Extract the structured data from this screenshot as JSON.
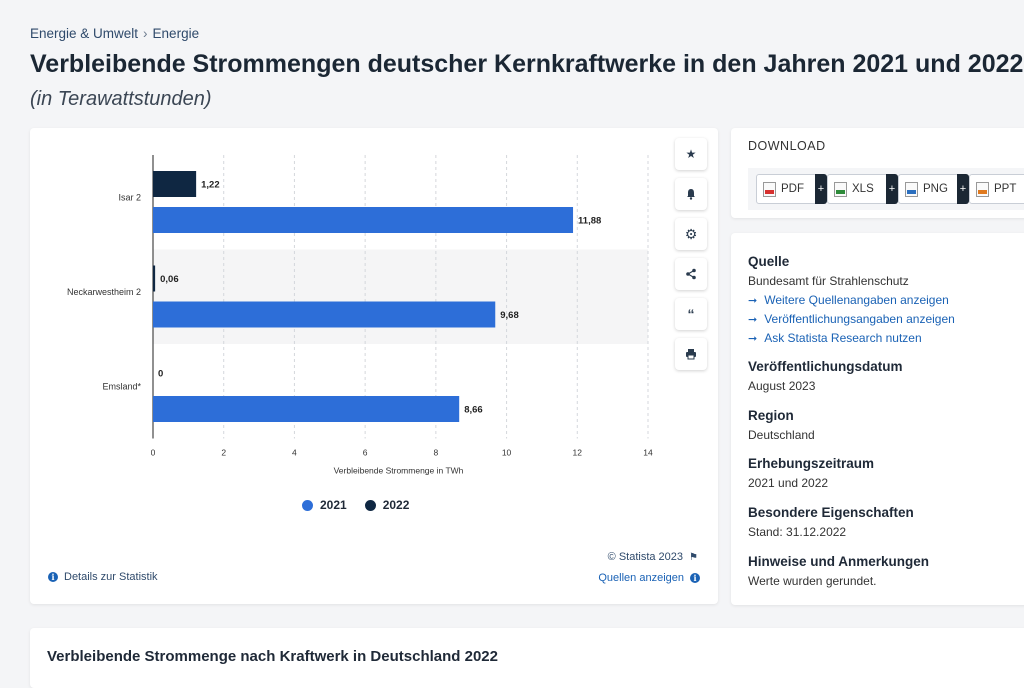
{
  "breadcrumb": {
    "items": [
      "Energie & Umwelt",
      "Energie"
    ],
    "separator": "›"
  },
  "title": "Verbleibende Strommengen deutscher Kernkraftwerke in den Jahren 2021 und 2022",
  "subtitle": "(in Terawattstunden)",
  "chart_data": {
    "type": "bar",
    "orientation": "horizontal",
    "categories": [
      "Isar 2",
      "Neckarwestheim 2",
      "Emsland*"
    ],
    "series": [
      {
        "name": "2022",
        "values": [
          1.22,
          0.06,
          0
        ],
        "labels": [
          "1,22",
          "0,06",
          "0"
        ],
        "color": "#0f2742"
      },
      {
        "name": "2021",
        "values": [
          11.88,
          9.68,
          8.66
        ],
        "labels": [
          "11,88",
          "9,68",
          "8,66"
        ],
        "color": "#2d6ed8"
      }
    ],
    "xlabel": "Verbleibende Strommenge in TWh",
    "xlim": [
      0,
      14
    ],
    "xticks": [
      0,
      2,
      4,
      6,
      8,
      10,
      12,
      14
    ],
    "grid": true,
    "legend_position": "bottom"
  },
  "legend": [
    {
      "label": "2021",
      "color": "#2d6ed8"
    },
    {
      "label": "2022",
      "color": "#0f2742"
    }
  ],
  "chart_footer": {
    "copyright": "© Statista 2023",
    "details": "Details zur Statistik",
    "sources": "Quellen anzeigen"
  },
  "toolbar": [
    "star-icon",
    "bell-icon",
    "gear-icon",
    "share-icon",
    "quote-icon",
    "print-icon"
  ],
  "download": {
    "title": "DOWNLOAD",
    "buttons": [
      {
        "label": "PDF",
        "icon": "pdf"
      },
      {
        "label": "XLS",
        "icon": "xls"
      },
      {
        "label": "PNG",
        "icon": "png"
      },
      {
        "label": "PPT",
        "icon": "ppt"
      }
    ]
  },
  "info": {
    "source_head": "Quelle",
    "source_val": "Bundesamt für Strahlenschutz",
    "source_links": [
      "Weitere Quellenangaben anzeigen",
      "Veröffentlichungsangaben anzeigen",
      "Ask Statista Research nutzen"
    ],
    "pub_head": "Veröffentlichungsdatum",
    "pub_val": "August 2023",
    "region_head": "Region",
    "region_val": "Deutschland",
    "period_head": "Erhebungszeitraum",
    "period_val": "2021 und 2022",
    "special_head": "Besondere Eigenschaften",
    "special_val": "Stand: 31.12.2022",
    "notes_head": "Hinweise und Anmerkungen",
    "notes_val": "Werte wurden gerundet."
  },
  "related_title": "Verbleibende Strommenge nach Kraftwerk in Deutschland 2022"
}
